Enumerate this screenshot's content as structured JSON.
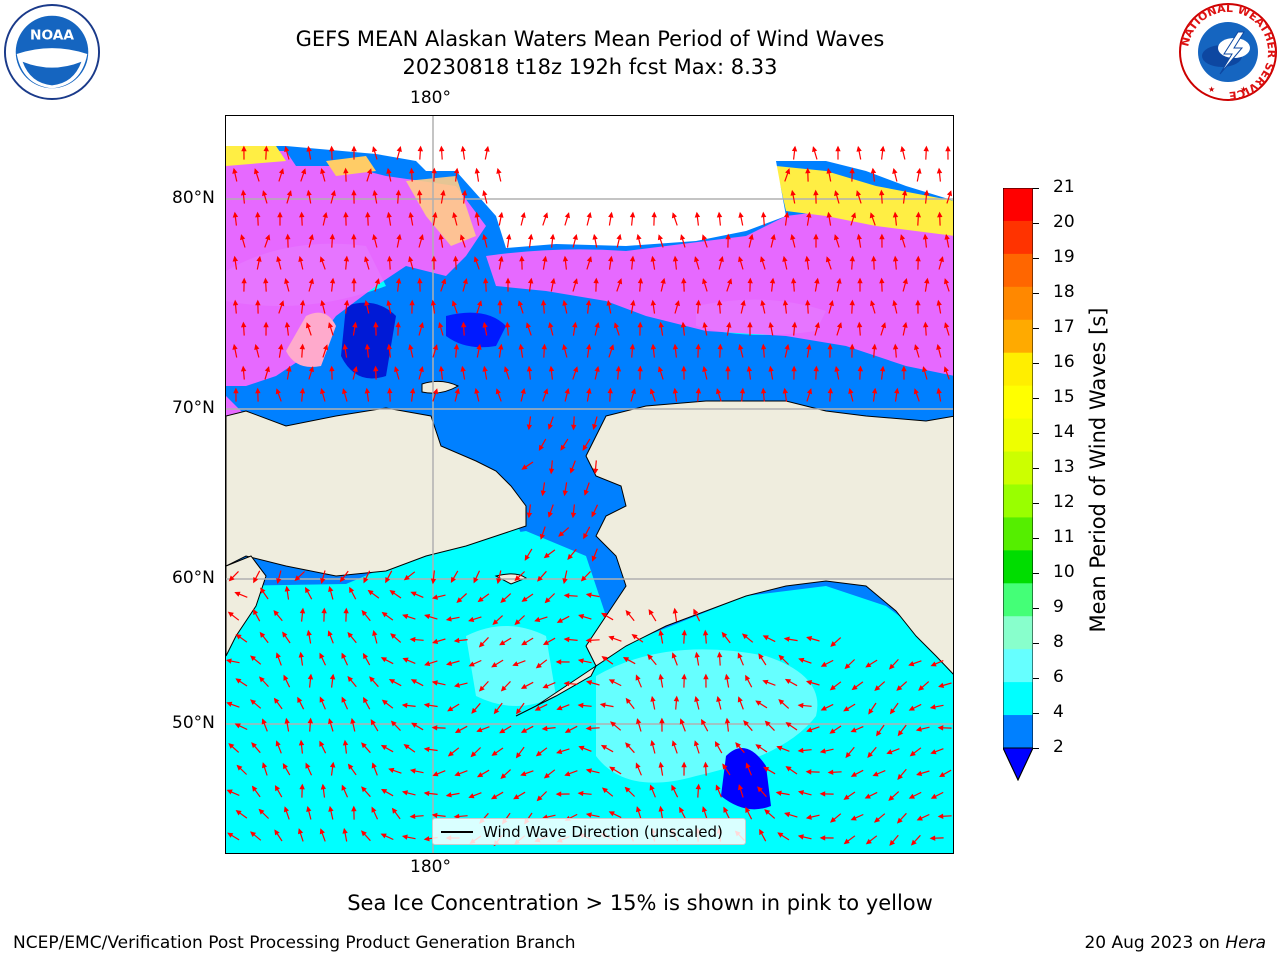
{
  "title": {
    "line1": "GEFS MEAN Alaskan Waters Mean Period of Wind Waves",
    "line2": "20230818 t18z 192h fcst   Max: 8.33"
  },
  "logos": {
    "noaa_text": "NOAA",
    "nws_ring_text": "NATIONAL WEATHER SERVICE"
  },
  "map": {
    "lat_labels": [
      "80°N",
      "70°N",
      "60°N",
      "50°N"
    ],
    "lon_label_top": "180°",
    "lon_label_bottom": "180°",
    "legend_text": "Wind Wave Direction (unscaled)",
    "colors": {
      "ocean_low": "#0080ff",
      "ocean_mid": "#00ffff",
      "ocean_high": "#66ffff",
      "ocean_min": "#0000ff",
      "land": "#efedde",
      "arrow": "#ff0000",
      "ice_pink": "#ff66ff",
      "ice_yellow": "#ffee44"
    }
  },
  "colorbar": {
    "label": "Mean Period of Wind Waves [s]",
    "ticks": [
      "21",
      "20",
      "19",
      "18",
      "17",
      "16",
      "15",
      "14",
      "13",
      "12",
      "11",
      "10",
      "9",
      "8",
      "6",
      "4",
      "2"
    ],
    "bands": [
      "#ff0000",
      "#ff3300",
      "#ff6600",
      "#ff8800",
      "#ffaa00",
      "#ffee00",
      "#ffff00",
      "#eeff00",
      "#ccff00",
      "#99ff00",
      "#55ee00",
      "#00dd00",
      "#44ff77",
      "#88ffcc",
      "#66ffff",
      "#00ffff",
      "#0080ff"
    ],
    "under_color": "#0000ff"
  },
  "ice_note": "Sea Ice Concentration > 15% is shown in pink to yellow",
  "footer": {
    "left": "NCEP/EMC/Verification Post Processing Product Generation Branch",
    "right_date": "20 Aug 2023 on",
    "right_machine": "Hera"
  }
}
